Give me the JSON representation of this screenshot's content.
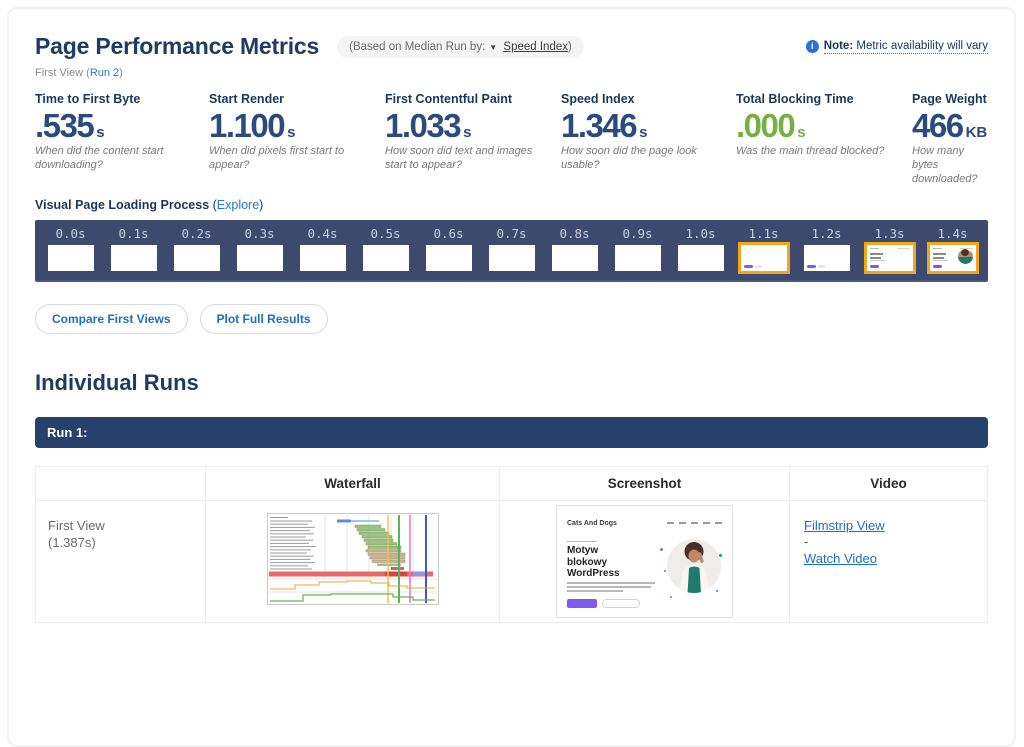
{
  "header": {
    "title": "Page Performance Metrics",
    "median_pill": {
      "prefix": "(Based on Median Run by:",
      "dropdown_icon": "▼",
      "link_label": "Speed Index",
      "suffix": ")"
    },
    "note": {
      "label": "Note:",
      "text": "Metric availability will vary"
    },
    "view_line": {
      "prefix": "First View (",
      "run_link": "Run 2",
      "suffix": ")"
    }
  },
  "metrics": [
    {
      "label": "Time to First Byte",
      "value": ".535",
      "unit": "s",
      "description": "When did the content start downloading?",
      "value_color": "#2b4b7e"
    },
    {
      "label": "Start Render",
      "value": "1.100",
      "unit": "s",
      "description": "When did pixels first start to appear?",
      "value_color": "#2b4b7e"
    },
    {
      "label": "First Contentful Paint",
      "value": "1.033",
      "unit": "s",
      "description": "How soon did text and images start to appear?",
      "value_color": "#2b4b7e"
    },
    {
      "label": "Speed Index",
      "value": "1.346",
      "unit": "s",
      "description": "How soon did the page look usable?",
      "value_color": "#2b4b7e"
    },
    {
      "label": "Total Blocking Time",
      "value": ".000",
      "unit": "s",
      "description": "Was the main thread blocked?",
      "value_color": "#76b043"
    },
    {
      "label": "Page Weight",
      "value": "466",
      "unit": "KB",
      "description": "How many bytes downloaded?",
      "value_color": "#2b4b7e"
    }
  ],
  "filmstrip": {
    "heading": "Visual Page Loading Process",
    "explore": {
      "prefix": " (",
      "link_label": "Explore",
      "suffix": ")"
    },
    "frames": [
      {
        "time": "0.0s",
        "highlighted": false,
        "content": "blank"
      },
      {
        "time": "0.1s",
        "highlighted": false,
        "content": "blank"
      },
      {
        "time": "0.2s",
        "highlighted": false,
        "content": "blank"
      },
      {
        "time": "0.3s",
        "highlighted": false,
        "content": "blank"
      },
      {
        "time": "0.4s",
        "highlighted": false,
        "content": "blank"
      },
      {
        "time": "0.5s",
        "highlighted": false,
        "content": "blank"
      },
      {
        "time": "0.6s",
        "highlighted": false,
        "content": "blank"
      },
      {
        "time": "0.7s",
        "highlighted": false,
        "content": "blank"
      },
      {
        "time": "0.8s",
        "highlighted": false,
        "content": "blank"
      },
      {
        "time": "0.9s",
        "highlighted": false,
        "content": "blank"
      },
      {
        "time": "1.0s",
        "highlighted": false,
        "content": "blank"
      },
      {
        "time": "1.1s",
        "highlighted": true,
        "content": "button"
      },
      {
        "time": "1.2s",
        "highlighted": false,
        "content": "button"
      },
      {
        "time": "1.3s",
        "highlighted": true,
        "content": "partial"
      },
      {
        "time": "1.4s",
        "highlighted": true,
        "content": "full"
      }
    ]
  },
  "actions": {
    "compare_button": "Compare First Views",
    "plot_button": "Plot Full Results"
  },
  "individual_runs": {
    "heading": "Individual Runs",
    "run_header": "Run 1:",
    "table": {
      "col_waterfall": "Waterfall",
      "col_screenshot": "Screenshot",
      "col_video": "Video",
      "first_view_label": "First View",
      "first_view_time": "(1.387s)",
      "filmstrip_link": "Filmstrip View",
      "separator": "-",
      "watch_link": "Watch Video"
    }
  },
  "page_thumbnail": {
    "site_title": "Cats And Dogs",
    "headline": "Motyw blokowy WordPress"
  },
  "colors": {
    "heading_navy": "#1d3c63",
    "metric_blue": "#2b4b7e",
    "metric_green": "#76b043",
    "link_blue": "#1e6fc0",
    "filmstrip_bg": "#3d4a6e",
    "highlight_orange": "#f2a71b",
    "run_bar_bg": "#26416b"
  }
}
